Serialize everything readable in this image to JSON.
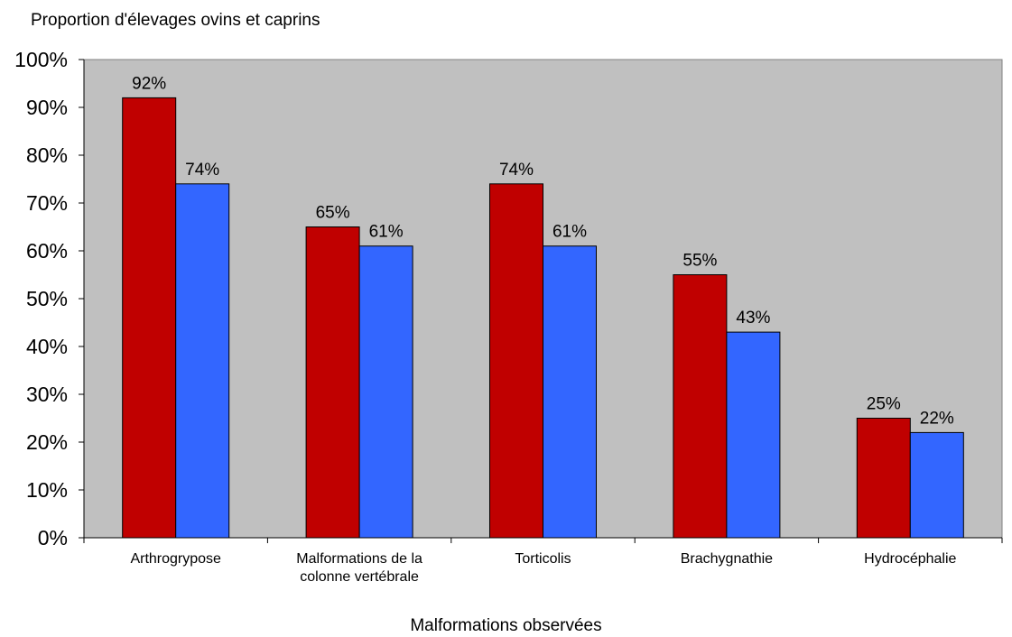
{
  "chart_data": {
    "type": "bar",
    "ylabel": "Proportion d'élevages ovins et caprins",
    "xlabel": "Malformations observées",
    "categories": [
      [
        "Arthrogrypose"
      ],
      [
        "Malformations de la",
        "colonne vertébrale"
      ],
      [
        "Torticolis"
      ],
      [
        "Brachygnathie"
      ],
      [
        "Hydrocéphalie"
      ]
    ],
    "series": [
      {
        "color": "#c00000",
        "values": [
          92,
          65,
          74,
          55,
          25
        ],
        "labels": [
          "92%",
          "65%",
          "74%",
          "55%",
          "25%"
        ]
      },
      {
        "color": "#3366ff",
        "values": [
          74,
          61,
          61,
          43,
          22
        ],
        "labels": [
          "74%",
          "61%",
          "61%",
          "43%",
          "22%"
        ]
      }
    ],
    "ylim": [
      0,
      100
    ],
    "yticks": [
      "0%",
      "10%",
      "20%",
      "30%",
      "40%",
      "50%",
      "60%",
      "70%",
      "80%",
      "90%",
      "100%"
    ],
    "plot_background": "#c0c0c0",
    "grid": false,
    "legend": "none"
  }
}
